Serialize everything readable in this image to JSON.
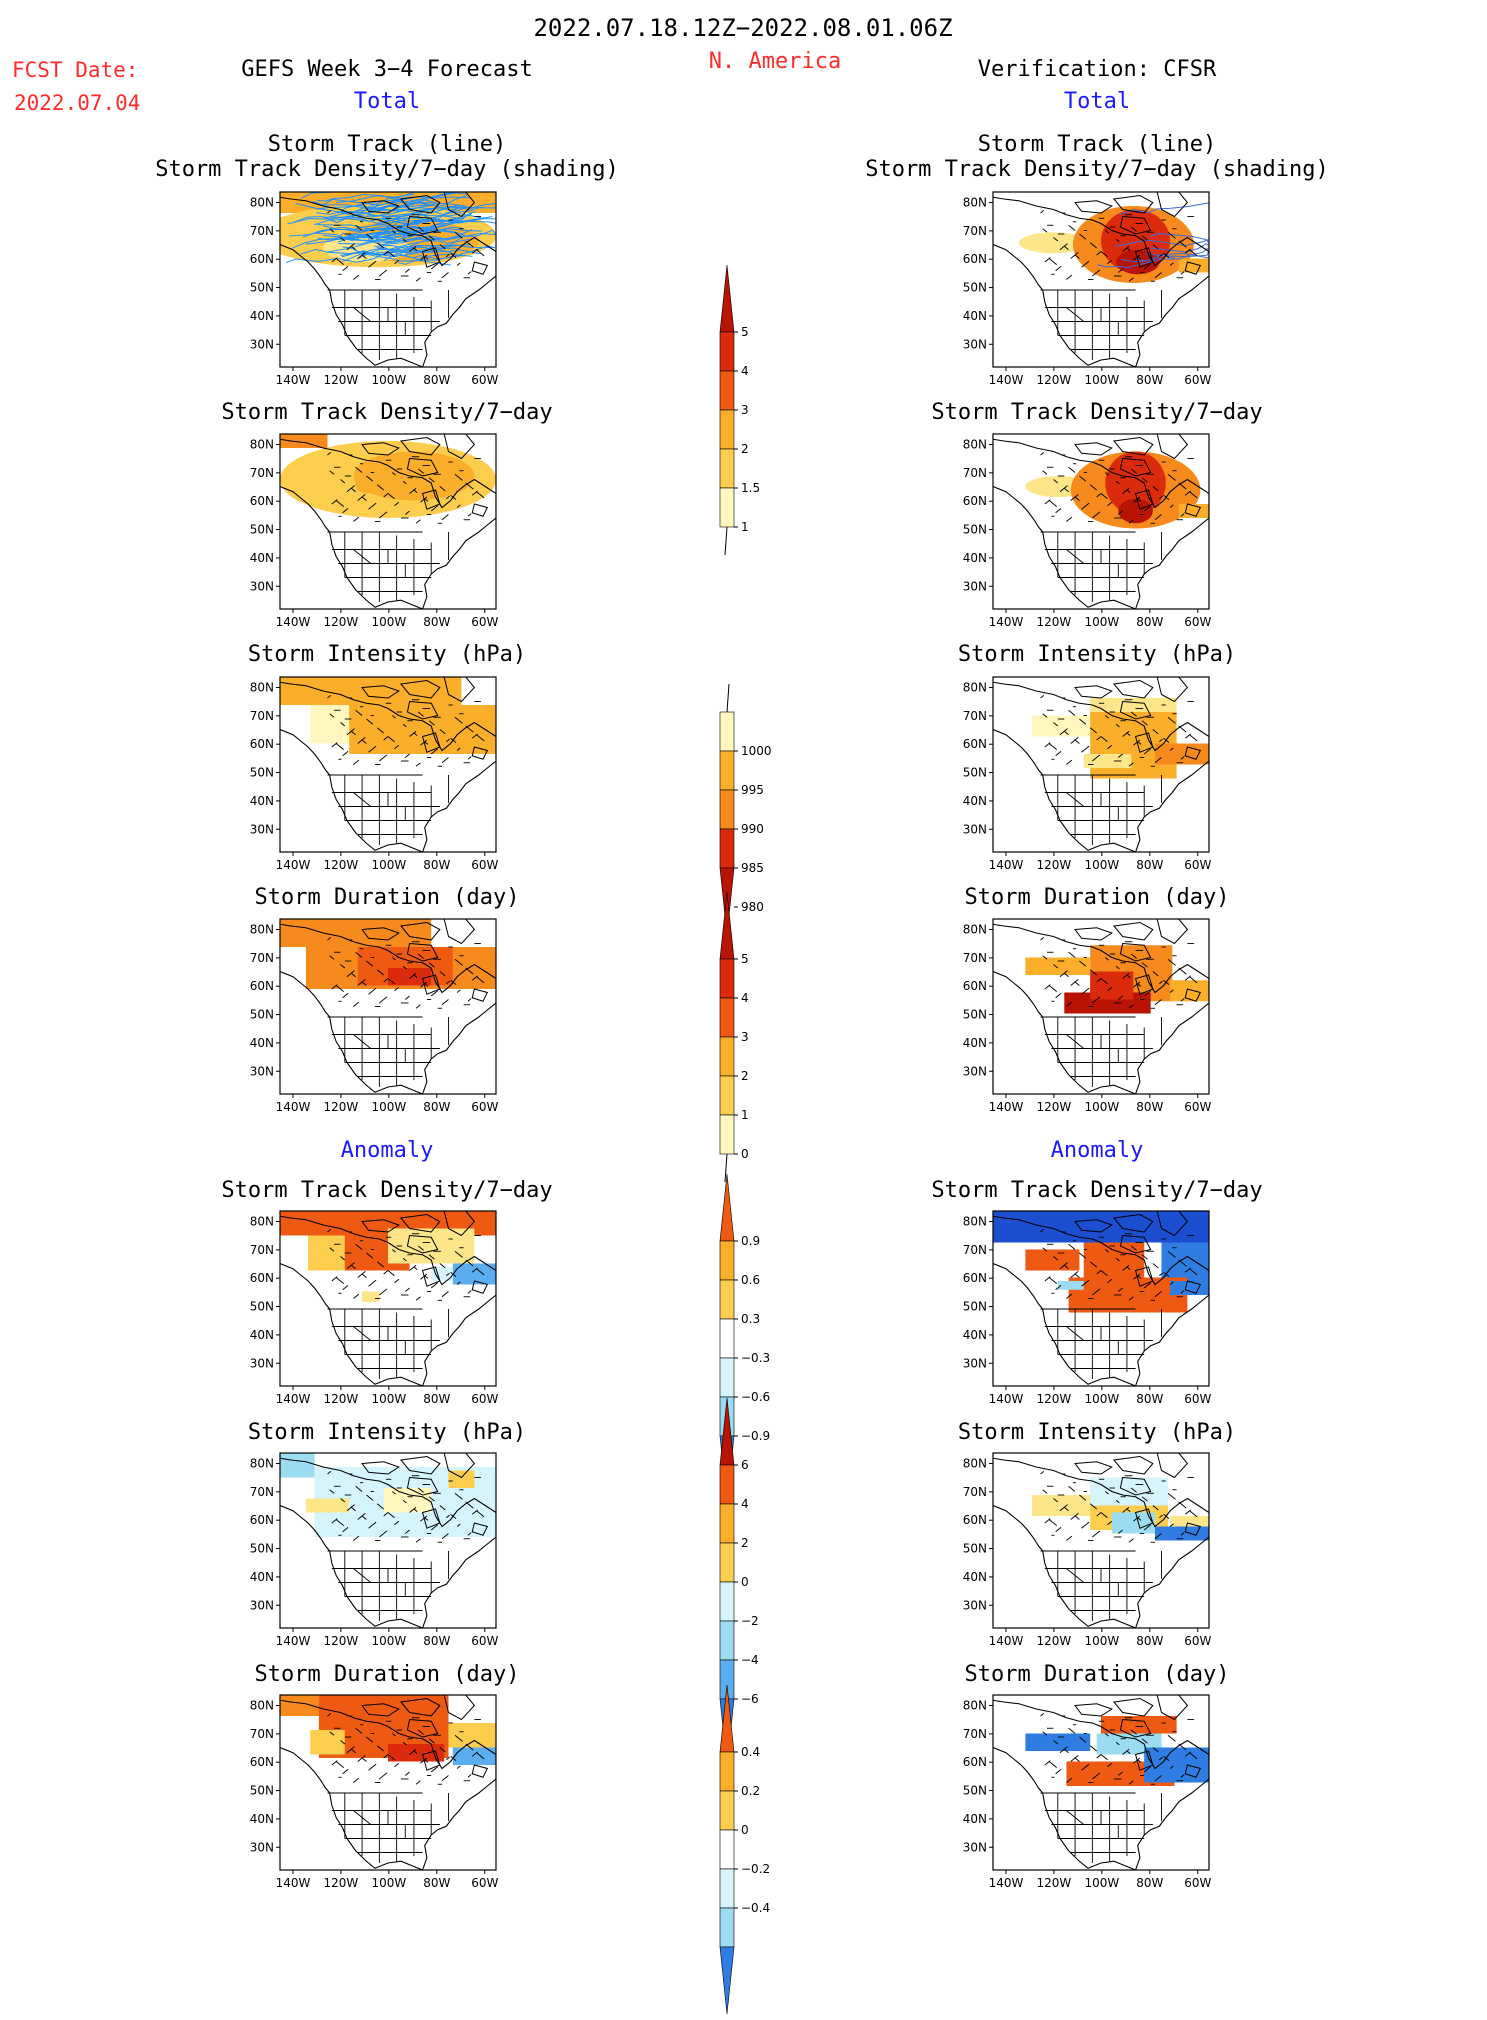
{
  "header": {
    "period": "2022.07.18.12Z−2022.08.01.06Z",
    "region": "N. America",
    "fcst_label": "FCST Date:",
    "fcst_date": "2022.07.04",
    "left_title": "GEFS Week 3−4 Forecast",
    "right_title": "Verification: CFSR",
    "left_sub": "Total",
    "right_sub": "Total",
    "left_anom": "Anomaly",
    "right_anom": "Anomaly"
  },
  "panel_titles": {
    "track_line": "Storm Track (line)",
    "track_shading": "Storm Track Density/7−day (shading)",
    "density": "Storm Track Density/7−day",
    "intensity": "Storm Intensity (hPa)",
    "duration": "Storm Duration (day)"
  },
  "axes": {
    "lat_ticks": [
      "80N",
      "70N",
      "60N",
      "50N",
      "40N",
      "30N"
    ],
    "lon_ticks": [
      "140W",
      "120W",
      "100W",
      "80W",
      "60W"
    ]
  },
  "colors": {
    "y1": "#fff7bd",
    "y2": "#fde68a",
    "y3": "#fdcd4e",
    "o1": "#fbae2a",
    "o2": "#f68a1c",
    "o3": "#ee5a12",
    "r1": "#dc2b0c",
    "r2": "#b91304",
    "r3": "#8a0c02",
    "b1": "#d6f4fb",
    "b2": "#9bdcf3",
    "b3": "#5aaef0",
    "b4": "#2f7de2",
    "b5": "#1c4ed1",
    "track_line": "#1e90ff",
    "cfsr_line": "#3b6bd8"
  },
  "colorbars": [
    {
      "name": "density-colorbar",
      "labels": [
        "5",
        "4",
        "3",
        "2",
        "1.5",
        "1"
      ]
    },
    {
      "name": "intensity-colorbar",
      "labels": [
        "1000",
        "995",
        "990",
        "985",
        "980"
      ]
    },
    {
      "name": "duration-colorbar",
      "labels": [
        "5",
        "4",
        "3",
        "2",
        "1",
        "0"
      ]
    },
    {
      "name": "density-anom-colorbar",
      "labels": [
        "0.9",
        "0.6",
        "0.3",
        "−0.3",
        "−0.6",
        "−0.9"
      ]
    },
    {
      "name": "intensity-anom-colorbar",
      "labels": [
        "6",
        "4",
        "2",
        "0",
        "−2",
        "−4",
        "−6"
      ]
    },
    {
      "name": "duration-anom-colorbar",
      "labels": [
        "0.4",
        "0.2",
        "0",
        "−0.2",
        "−0.4"
      ]
    }
  ]
}
